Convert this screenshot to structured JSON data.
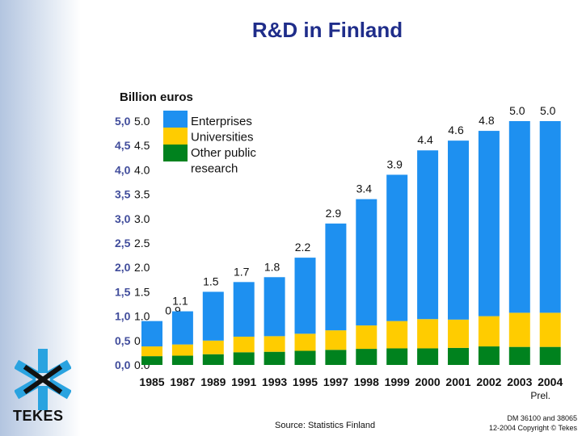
{
  "title": "R&D in Finland",
  "footer": {
    "source": "Source: Statistics Finland",
    "copyright_line1": "DM 36100 and 38065",
    "copyright_line2": "12-2004 Copyright © Tekes"
  },
  "logo": {
    "text": "TEKES",
    "icon": "tekes-snowflake-icon"
  },
  "colors": {
    "enterprises": "#1e90f0",
    "universities": "#ffcc00",
    "other": "#00821e",
    "title": "#1f2d8a"
  },
  "chart_data": {
    "type": "bar",
    "stacked": true,
    "title": "R&D in Finland",
    "ylabel": "Billion euros",
    "ylim": [
      0,
      5
    ],
    "yticks": [
      "0.0",
      "0.5",
      "1.0",
      "1.5",
      "2.0",
      "2.5",
      "3.0",
      "3.5",
      "4.0",
      "4.5",
      "5.0"
    ],
    "yticks_shadow": [
      "0,0",
      "0,5",
      "1,0",
      "1,5",
      "2,0",
      "2,5",
      "3,0",
      "3,5",
      "4,0",
      "4,5",
      "5,0"
    ],
    "categories": [
      "1985",
      "1987",
      "1989",
      "1991",
      "1993",
      "1995",
      "1997",
      "1998",
      "1999",
      "2000",
      "2001",
      "2002",
      "2003",
      "2004"
    ],
    "category_note": "Prel.",
    "totals": [
      0.9,
      1.1,
      1.5,
      1.7,
      1.8,
      2.2,
      2.9,
      3.4,
      3.9,
      4.4,
      4.6,
      4.8,
      5.0,
      5.0
    ],
    "total_labels": [
      "0.9",
      "1.1",
      "1.5",
      "1.7",
      "1.8",
      "2.2",
      "2.9",
      "3.4",
      "3.9",
      "4.4",
      "4.6",
      "4.8",
      "5.0",
      "5.0"
    ],
    "series": [
      {
        "name": "Other public research",
        "values": [
          0.18,
          0.19,
          0.22,
          0.26,
          0.27,
          0.29,
          0.31,
          0.33,
          0.34,
          0.34,
          0.35,
          0.38,
          0.37,
          0.37
        ]
      },
      {
        "name": "Universities",
        "values": [
          0.2,
          0.23,
          0.28,
          0.32,
          0.32,
          0.35,
          0.4,
          0.48,
          0.56,
          0.6,
          0.58,
          0.62,
          0.7,
          0.7
        ]
      },
      {
        "name": "Enterprises",
        "values": [
          0.52,
          0.68,
          1.0,
          1.12,
          1.21,
          1.56,
          2.19,
          2.59,
          3.0,
          3.46,
          3.67,
          3.8,
          3.93,
          3.93
        ]
      }
    ],
    "legend": {
      "position": "top-left",
      "entries": [
        "Enterprises",
        "Universities",
        "Other public",
        "research"
      ]
    }
  }
}
